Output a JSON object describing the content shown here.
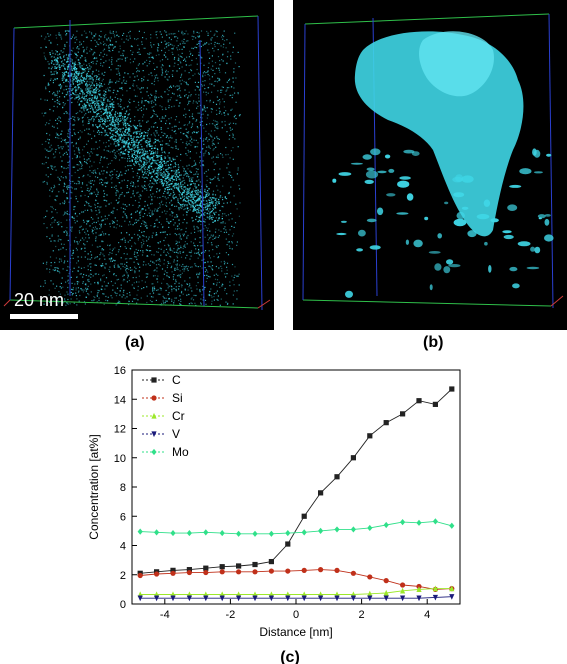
{
  "figure": {
    "panel_a_label": "(a)",
    "panel_b_label": "(b)",
    "panel_c_label": "(c)",
    "scale_bar_label": "20 nm"
  },
  "colors": {
    "atom_cyan": "#3fd6e6",
    "box_green": "#2fbf4a",
    "box_blue": "#2a3fd0",
    "box_red": "#d03a3a"
  },
  "chart_data": {
    "type": "line",
    "xlabel": "Distance [nm]",
    "ylabel": "Concentration [at%]",
    "xlim": [
      -5,
      5
    ],
    "ylim": [
      0,
      16
    ],
    "xticks": [
      -4,
      -2,
      0,
      2,
      4
    ],
    "yticks": [
      0,
      2,
      4,
      6,
      8,
      10,
      12,
      14,
      16
    ],
    "legend_position": "top-left",
    "x": [
      -4.75,
      -4.25,
      -3.75,
      -3.25,
      -2.75,
      -2.25,
      -1.75,
      -1.25,
      -0.75,
      -0.25,
      0.25,
      0.75,
      1.25,
      1.75,
      2.25,
      2.75,
      3.25,
      3.75,
      4.25,
      4.75
    ],
    "series": [
      {
        "name": "C",
        "color": "#222222",
        "marker": "square",
        "values": [
          2.1,
          2.2,
          2.3,
          2.35,
          2.45,
          2.55,
          2.6,
          2.7,
          2.9,
          4.1,
          6.0,
          7.6,
          8.7,
          10.0,
          11.5,
          12.4,
          13.0,
          13.9,
          13.65,
          14.7
        ]
      },
      {
        "name": "Si",
        "color": "#c0301a",
        "marker": "circle",
        "values": [
          1.95,
          2.05,
          2.1,
          2.15,
          2.15,
          2.2,
          2.2,
          2.2,
          2.25,
          2.25,
          2.3,
          2.35,
          2.3,
          2.1,
          1.85,
          1.6,
          1.3,
          1.2,
          1.0,
          1.05
        ]
      },
      {
        "name": "Cr",
        "color": "#9ce82a",
        "marker": "triangle-up",
        "values": [
          0.65,
          0.65,
          0.65,
          0.65,
          0.65,
          0.65,
          0.65,
          0.65,
          0.65,
          0.65,
          0.65,
          0.65,
          0.65,
          0.65,
          0.7,
          0.75,
          0.9,
          1.0,
          1.05,
          1.05
        ]
      },
      {
        "name": "V",
        "color": "#1a1a7a",
        "marker": "triangle-down",
        "values": [
          0.4,
          0.4,
          0.4,
          0.4,
          0.4,
          0.4,
          0.4,
          0.4,
          0.4,
          0.4,
          0.4,
          0.4,
          0.4,
          0.4,
          0.4,
          0.4,
          0.4,
          0.4,
          0.45,
          0.5
        ]
      },
      {
        "name": "Mo",
        "color": "#30e08a",
        "marker": "diamond",
        "values": [
          4.95,
          4.9,
          4.85,
          4.85,
          4.9,
          4.85,
          4.8,
          4.8,
          4.8,
          4.85,
          4.9,
          5.0,
          5.1,
          5.1,
          5.2,
          5.4,
          5.6,
          5.55,
          5.65,
          5.35
        ]
      }
    ]
  }
}
